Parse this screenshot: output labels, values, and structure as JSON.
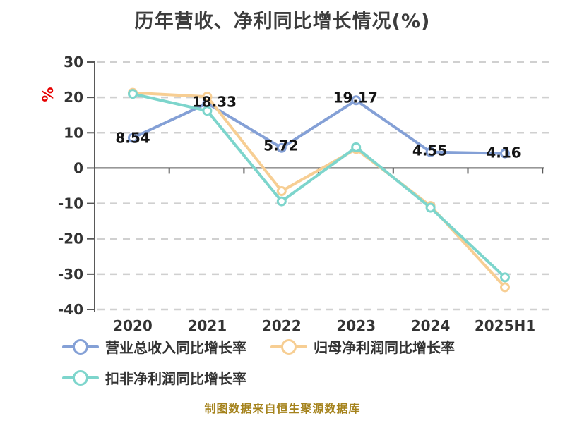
{
  "title": "历年营收、净利同比增长情况(%)",
  "y_axis": {
    "unit": "%",
    "unit_color": "#e60000"
  },
  "footer": "制图数据来自恒生聚源数据库",
  "colors": {
    "revenue_line": "#84a0d6",
    "net_profit_line": "#f7ce93",
    "non_gaap_line": "#7dd5cc",
    "grid": "#d0d0d0",
    "axis": "#595959",
    "tick_text": "#333333",
    "data_label_text": "#141414",
    "title_text": "#3d3d3d",
    "footer_text": "#a5831d"
  },
  "chart_data": {
    "type": "line",
    "title": "历年营收、净利同比增长情况(%)",
    "categories": [
      "2020",
      "2021",
      "2022",
      "2023",
      "2024",
      "2025H1"
    ],
    "series": [
      {
        "name": "营业总收入同比增长率",
        "color": "#84a0d6",
        "values": [
          8.54,
          18.33,
          5.72,
          19.17,
          4.55,
          4.16
        ],
        "labels": [
          "8.54",
          "18.33",
          "5.72",
          "19.17",
          "4.55",
          "4.16"
        ],
        "labeled": true
      },
      {
        "name": "归母净利润同比增长率",
        "color": "#f7ce93",
        "values": [
          21.3,
          20.2,
          -6.5,
          5.4,
          -10.7,
          -33.7
        ],
        "labeled": false
      },
      {
        "name": "扣非净利润同比增长率",
        "color": "#7dd5cc",
        "values": [
          21.0,
          16.2,
          -9.4,
          5.9,
          -11.2,
          -30.9
        ],
        "labeled": false
      }
    ],
    "ylim": [
      -40,
      30
    ],
    "ytick_step": 10,
    "ytick_labels": [
      "30",
      "20",
      "10",
      "0",
      "-10",
      "-20",
      "-30",
      "-40"
    ],
    "y_unit": "%",
    "grid": "horizontal dashed",
    "legend_position": "bottom-left two rows",
    "marker": "circle white-filled colored-border"
  }
}
